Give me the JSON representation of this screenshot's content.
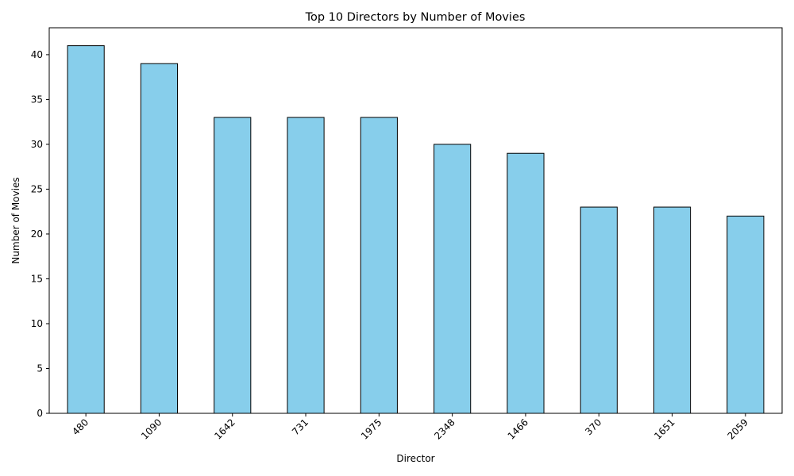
{
  "chart_data": {
    "type": "bar",
    "title": "Top 10 Directors by Number of Movies",
    "xlabel": "Director",
    "ylabel": "Number of Movies",
    "categories": [
      "480",
      "1090",
      "1642",
      "731",
      "1975",
      "2348",
      "1466",
      "370",
      "1651",
      "2059"
    ],
    "values": [
      41,
      39,
      33,
      33,
      33,
      30,
      29,
      23,
      23,
      22
    ],
    "ylim": [
      0,
      43
    ],
    "yticks": [
      0,
      5,
      10,
      15,
      20,
      25,
      30,
      35,
      40
    ],
    "yticks_text": [
      "0",
      "5",
      "10",
      "15",
      "20",
      "25",
      "30",
      "35",
      "40"
    ],
    "grid": false,
    "legend": "none",
    "colors": {
      "bar_fill": "#87ceeb",
      "bar_edge": "#000000"
    }
  }
}
